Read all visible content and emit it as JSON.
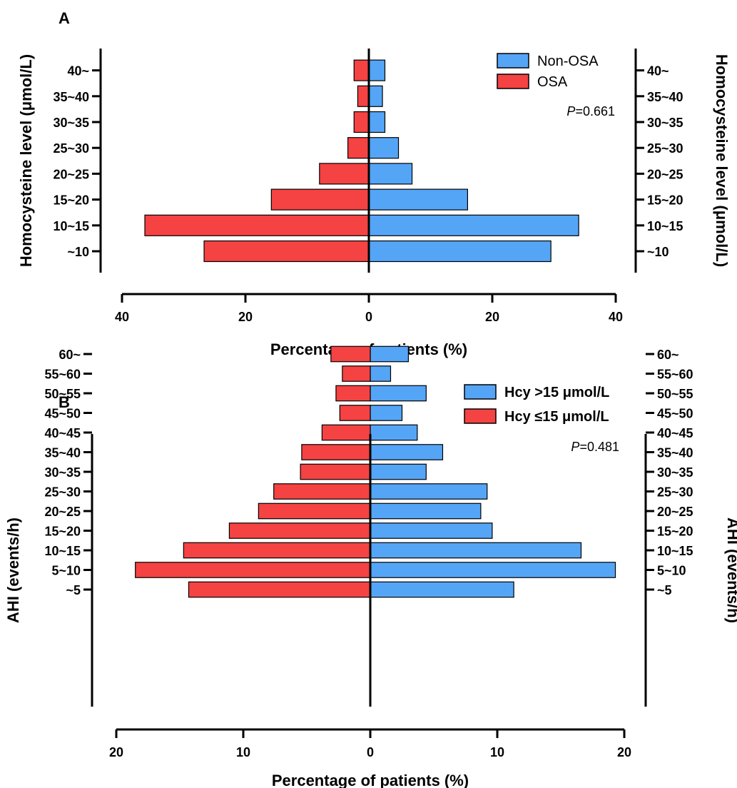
{
  "chart_data": [
    {
      "panel": "A",
      "type": "bar",
      "orientation": "horizontal-butterfly",
      "categories": [
        "~10",
        "10~15",
        "15~20",
        "20~25",
        "25~30",
        "30~35",
        "35~40",
        "40~"
      ],
      "series": [
        {
          "name": "Non-OSA",
          "side": "right",
          "color": "#55A5F7",
          "values": [
            29.5,
            34.0,
            16.0,
            7.0,
            4.8,
            2.6,
            2.2,
            2.6
          ]
        },
        {
          "name": "OSA",
          "side": "left",
          "color": "#F54242",
          "values": [
            26.7,
            36.3,
            15.8,
            8.0,
            3.4,
            2.4,
            1.8,
            2.4
          ]
        }
      ],
      "xlabel": "Percentage of patients (%)",
      "ylabel": "Homocysteine level (μmol/L)",
      "ylabel_right": "Homocysteine level (μmol/L)",
      "xlim": [
        -40,
        40
      ],
      "xticks": [
        40,
        20,
        0,
        20,
        40
      ],
      "legend_position": "top-right",
      "p_value_label": "P",
      "p_value": "=0.661",
      "grid": false
    },
    {
      "panel": "B",
      "type": "bar",
      "orientation": "horizontal-butterfly",
      "categories": [
        "~5",
        "5~10",
        "10~15",
        "15~20",
        "20~25",
        "25~30",
        "30~35",
        "35~40",
        "40~45",
        "45~50",
        "50~55",
        "55~60",
        "60~"
      ],
      "series": [
        {
          "name": "Hcy >15 μmol/L",
          "side": "right",
          "color": "#55A5F7",
          "values": [
            11.3,
            19.3,
            16.6,
            9.6,
            8.7,
            9.2,
            4.4,
            5.7,
            3.7,
            2.5,
            4.4,
            1.6,
            3.0
          ]
        },
        {
          "name": "Hcy ≤15 μmol/L",
          "side": "left",
          "color": "#F54242",
          "values": [
            14.3,
            18.5,
            14.7,
            11.1,
            8.8,
            7.6,
            5.5,
            5.4,
            3.8,
            2.4,
            2.7,
            2.2,
            3.1
          ]
        }
      ],
      "xlabel": "Percentage of patients (%)",
      "ylabel": "AHI (events/h)",
      "ylabel_right": "AHI (events/h)",
      "xlim": [
        -20,
        20
      ],
      "xticks": [
        20,
        10,
        0,
        10,
        20
      ],
      "legend_position": "top-right",
      "p_value_label": "P",
      "p_value": "=0.481",
      "grid": false
    }
  ]
}
